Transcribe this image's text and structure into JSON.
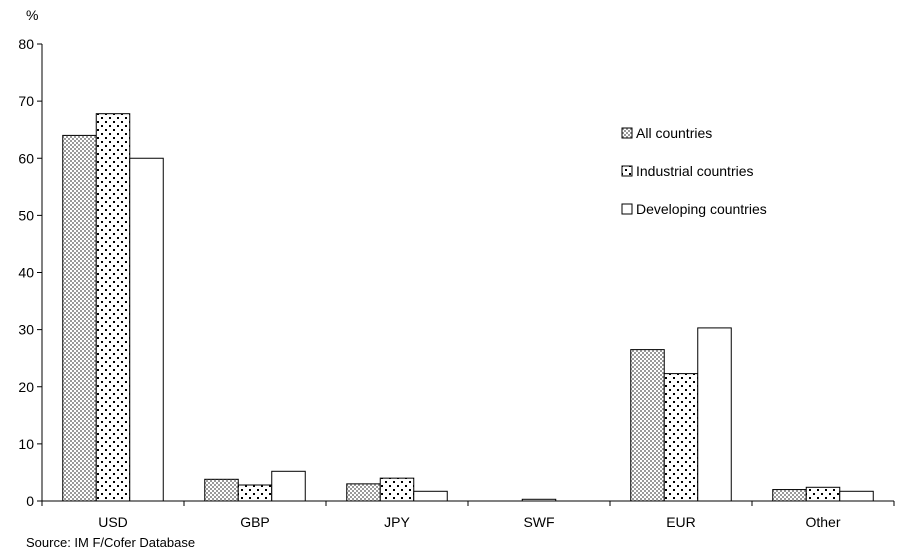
{
  "chart_data": {
    "type": "bar",
    "title": "",
    "xlabel": "",
    "ylabel": "%",
    "ylim": [
      0,
      80
    ],
    "yticks": [
      0,
      10,
      20,
      30,
      40,
      50,
      60,
      70,
      80
    ],
    "categories": [
      "USD",
      "GBP",
      "JPY",
      "SWF",
      "EUR",
      "Other"
    ],
    "series": [
      {
        "name": "All countries",
        "pattern": "dense-dots",
        "values": [
          64,
          3.8,
          3.0,
          0.0,
          26.5,
          2.0
        ]
      },
      {
        "name": "Industrial countries",
        "pattern": "sparse-dots",
        "values": [
          67.8,
          2.8,
          4.0,
          0.3,
          22.3,
          2.4
        ]
      },
      {
        "name": "Developing countries",
        "pattern": "white",
        "values": [
          60,
          5.2,
          1.7,
          0.0,
          30.3,
          1.7
        ]
      }
    ],
    "legend_position": "top-right",
    "grid": false,
    "source": "Source: IM F/Cofer Database"
  },
  "colors": {
    "axis": "#000000",
    "bar_stroke": "#000000",
    "dense_fill": "#9a9a9a",
    "background": "#ffffff"
  }
}
